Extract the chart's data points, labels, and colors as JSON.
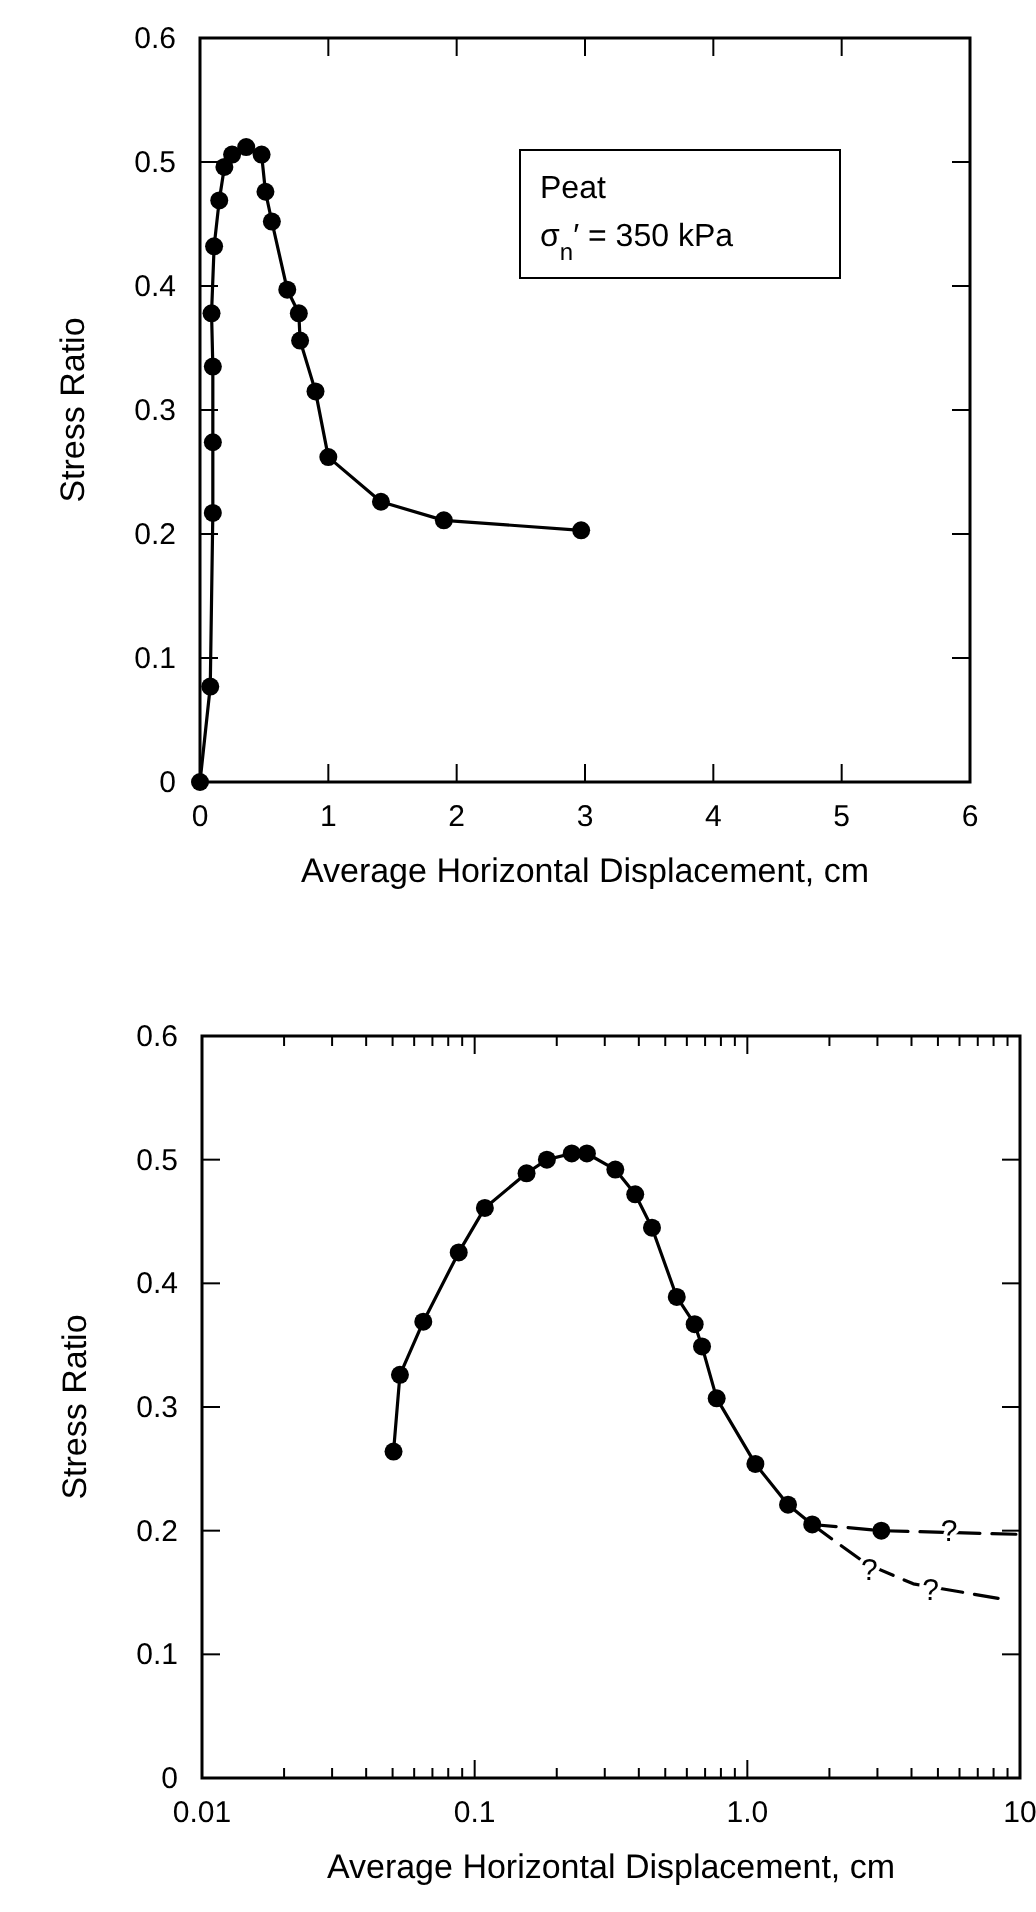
{
  "chart_data": [
    {
      "type": "line",
      "xlabel": "Average Horizontal Displacement, cm",
      "ylabel": "Stress Ratio",
      "xlim": [
        0,
        6
      ],
      "ylim": [
        0,
        0.6
      ],
      "xticks": [
        0,
        1,
        2,
        3,
        4,
        5,
        6
      ],
      "yticks": [
        0,
        0.1,
        0.2,
        0.3,
        0.4,
        0.5,
        0.6
      ],
      "grid": false,
      "marker": "circle",
      "line_style": "solid",
      "annotations": [
        "Peat",
        "σ$_{n}$′ = 350 kPa"
      ],
      "series": [
        {
          "color": "#000000",
          "x": [
            0,
            0.08,
            0.1,
            0.1,
            0.1,
            0.09,
            0.11,
            0.15,
            0.19,
            0.25,
            0.36,
            0.48,
            0.51,
            0.56,
            0.68,
            0.77,
            0.78,
            0.9,
            1.0,
            1.41,
            1.9,
            2.97
          ],
          "values": [
            0,
            0.077,
            0.217,
            0.274,
            0.335,
            0.378,
            0.432,
            0.469,
            0.496,
            0.506,
            0.512,
            0.506,
            0.476,
            0.452,
            0.397,
            0.378,
            0.356,
            0.315,
            0.262,
            0.226,
            0.211,
            0.203
          ]
        }
      ]
    },
    {
      "type": "line",
      "xlabel": "Average Horizontal Displacement, cm",
      "ylabel": "Stress Ratio",
      "log": "x",
      "xlim": [
        0.01,
        10
      ],
      "ylim": [
        0,
        0.6
      ],
      "xticks": [
        0.01,
        {
          "value": 0.02,
          "label": null
        },
        {
          "value": 0.03,
          "label": null
        },
        {
          "value": 0.04,
          "label": null
        },
        {
          "value": 0.05,
          "label": null
        },
        {
          "value": 0.06,
          "label": null
        },
        {
          "value": 0.07,
          "label": null
        },
        {
          "value": 0.08,
          "label": null
        },
        {
          "value": 0.09,
          "label": null
        },
        0.1,
        {
          "value": 0.2,
          "label": null
        },
        {
          "value": 0.3,
          "label": null
        },
        {
          "value": 0.4,
          "label": null
        },
        {
          "value": 0.5,
          "label": null
        },
        {
          "value": 0.6,
          "label": null
        },
        {
          "value": 0.7,
          "label": null
        },
        {
          "value": 0.8,
          "label": null
        },
        {
          "value": 0.9,
          "label": null
        },
        {
          "value": 1,
          "label": "1.0"
        },
        {
          "value": 2,
          "label": null
        },
        {
          "value": 3,
          "label": null
        },
        {
          "value": 4,
          "label": null
        },
        {
          "value": 5,
          "label": null
        },
        {
          "value": 6,
          "label": null
        },
        {
          "value": 7,
          "label": null
        },
        {
          "value": 8,
          "label": null
        },
        {
          "value": 9,
          "label": null
        },
        10
      ],
      "yticks": [
        0,
        0.1,
        0.2,
        0.3,
        0.4,
        0.5,
        0.6
      ],
      "grid": false,
      "annotations": [
        {
          "text": "?",
          "x": 5.5,
          "y": 0.2
        },
        {
          "text": "?",
          "x": 2.8,
          "y": 0.168
        },
        {
          "text": "?",
          "x": 4.7,
          "y": 0.152
        }
      ],
      "series": [
        {
          "color": "#000000",
          "marker": "circle",
          "line_style": "solid",
          "x": [
            0.0504,
            0.0532,
            0.0648,
            0.0874,
            0.109,
            0.155,
            0.184,
            0.227,
            0.258,
            0.328,
            0.388,
            0.447,
            0.551,
            0.641,
            0.682,
            0.772,
            1.07,
            1.41,
            1.73
          ],
          "values": [
            0.264,
            0.326,
            0.369,
            0.425,
            0.461,
            0.489,
            0.5,
            0.505,
            0.505,
            0.492,
            0.472,
            0.445,
            0.389,
            0.367,
            0.349,
            0.307,
            0.254,
            0.221,
            0.205
          ]
        },
        {
          "color": "#000000",
          "marker": "none",
          "line_style": "dashed",
          "x": [
            1.73,
            3.1,
            10
          ],
          "values": [
            0.205,
            0.2,
            0.197
          ]
        },
        {
          "color": "#000000",
          "marker": "none",
          "line_style": "dashed",
          "x": [
            1.73,
            2.08,
            2.74,
            4.06,
            8.45
          ],
          "values": [
            0.205,
            0.192,
            0.173,
            0.157,
            0.145
          ]
        },
        {
          "type": "scatter",
          "color": "#000000",
          "marker": "circle",
          "x": [
            3.1
          ],
          "values": [
            0.2
          ]
        }
      ]
    }
  ]
}
